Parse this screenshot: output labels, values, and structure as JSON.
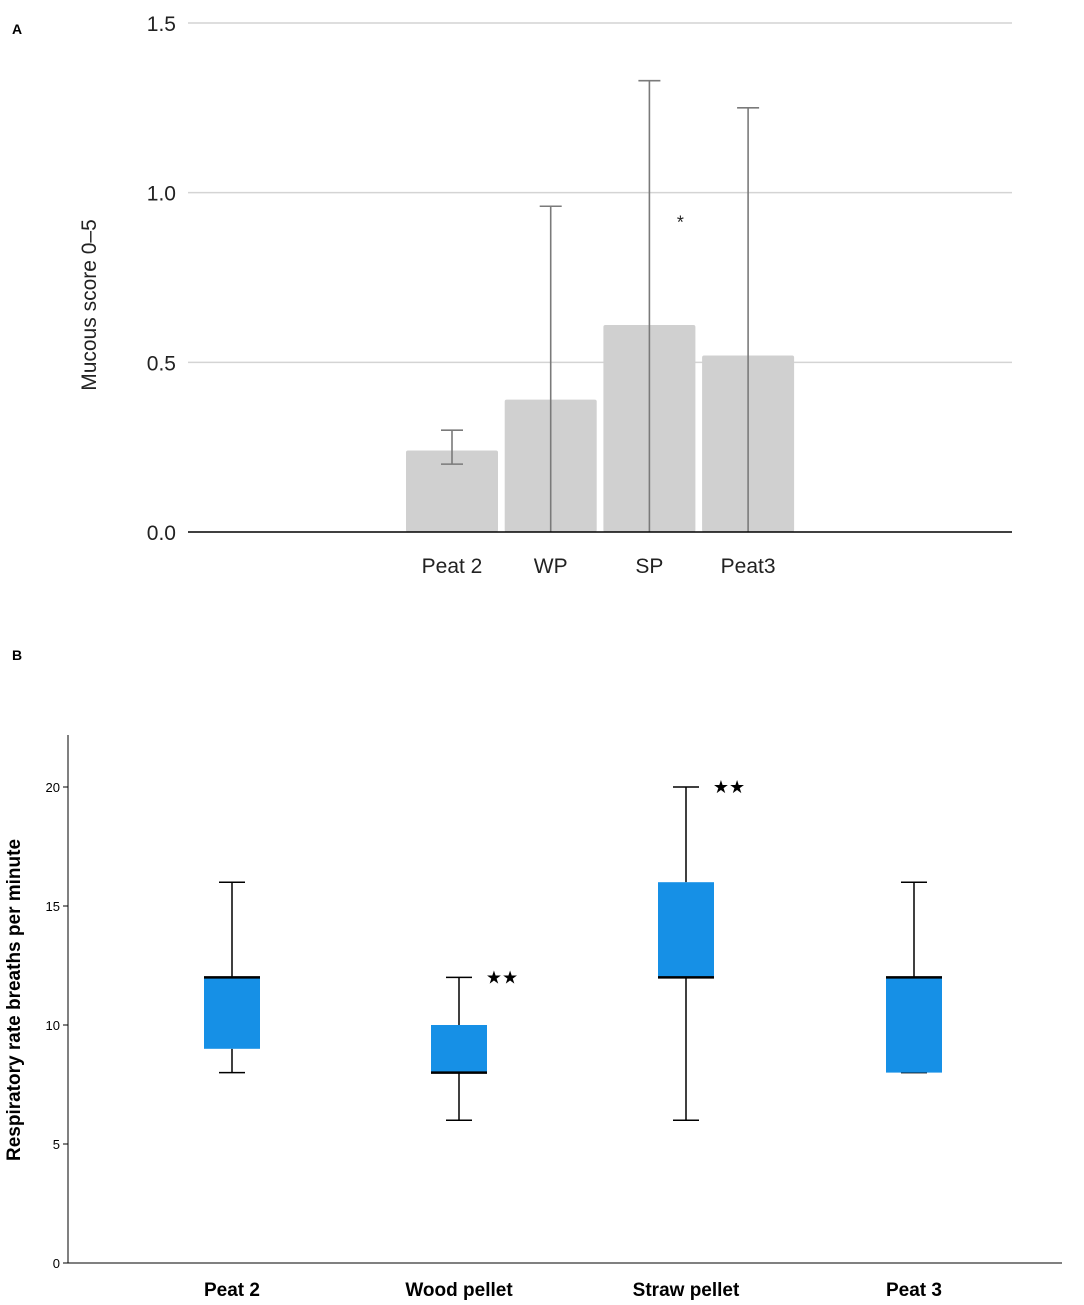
{
  "chart_data": [
    {
      "panel": "A",
      "type": "bar",
      "categories": [
        "Peat 2",
        "WP",
        "SP",
        "Peat3"
      ],
      "values": [
        0.24,
        0.39,
        0.61,
        0.52
      ],
      "error_bars": [
        {
          "low": 0.2,
          "high": 0.3
        },
        {
          "low": 0.0,
          "high": 0.96
        },
        {
          "low": 0.0,
          "high": 1.33
        },
        {
          "low": 0.0,
          "high": 1.25
        }
      ],
      "annotations": [
        {
          "category": "SP",
          "text": "*",
          "y": 0.93
        }
      ],
      "title": "",
      "xlabel": "",
      "ylabel": "Mucous score 0–5",
      "ylim": [
        0,
        1.5
      ],
      "yticks": [
        "0.0",
        "0.5",
        "1.0",
        "1.5"
      ],
      "grid": true,
      "colors": {
        "bar": "#d0d0d0",
        "grid": "#d4d4d4",
        "error": "#7a7a7a"
      }
    },
    {
      "panel": "B",
      "type": "box",
      "categories": [
        "Peat 2",
        "Wood pellet",
        "Straw pellet",
        "Peat 3"
      ],
      "boxes": [
        {
          "min": 8,
          "q1": 9,
          "median": 12,
          "q3": 12,
          "max": 16
        },
        {
          "min": 6,
          "q1": 8,
          "median": 8,
          "q3": 10,
          "max": 12
        },
        {
          "min": 6,
          "q1": 12,
          "median": 12,
          "q3": 16,
          "max": 20
        },
        {
          "min": 8,
          "q1": 8,
          "median": 12,
          "q3": 12,
          "max": 16
        }
      ],
      "annotations": [
        {
          "category": "Wood pellet",
          "text": "★★",
          "y": 12
        },
        {
          "category": "Straw pellet",
          "text": "★★",
          "y": 20
        }
      ],
      "title": "",
      "xlabel": "",
      "ylabel": "Respiratory rate breaths per minute",
      "ylim": [
        0,
        22
      ],
      "yticks": [
        "0",
        "5",
        "10",
        "15",
        "20"
      ],
      "grid": false,
      "colors": {
        "box": "#1690e6",
        "line": "#000000"
      }
    }
  ]
}
